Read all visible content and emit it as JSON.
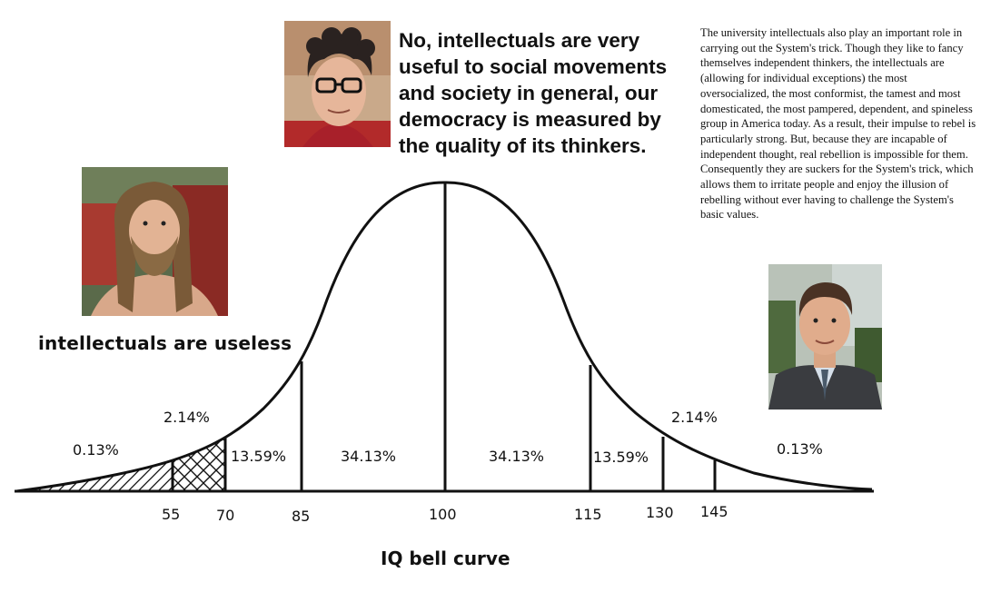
{
  "quote": {
    "lines": [
      "No, intellectuals are very",
      "useful to social movements",
      "and society in general, our",
      "democracy is measured by",
      "the quality of its thinkers."
    ]
  },
  "essay": {
    "text": "The university intellectuals also play an important role in carrying out the System's trick. Though they like to fancy themselves independent thinkers, the intellectuals are (allowing for individual exceptions) the most oversocialized, the most conformist, the tamest and most domesticated, the most pampered, dependent, and spineless group in America today. As a result, their impulse to rebel is particularly strong. But, because they are incapable of independent thought, real rebellion is impossible for them. Consequently they are suckers for the System's trick, which allows them to irritate people and enjoy the illusion of rebelling without ever having to challenge the System's basic values."
  },
  "left_caption": "intellectuals are useless",
  "chart": {
    "title": "IQ bell curve",
    "ticks": [
      "55",
      "70",
      "85",
      "100",
      "115",
      "130",
      "145"
    ],
    "percentages": {
      "far_left": "0.13%",
      "left_2": "2.14%",
      "left_13": "13.59%",
      "left_34": "34.13%",
      "right_34": "34.13%",
      "right_13": "13.59%",
      "right_2": "2.14%",
      "far_right": "0.13%"
    }
  },
  "photos": {
    "top_center": "portrait-curly-hair-glasses",
    "left": "portrait-long-hair-beard",
    "right": "portrait-suit-tie"
  }
}
